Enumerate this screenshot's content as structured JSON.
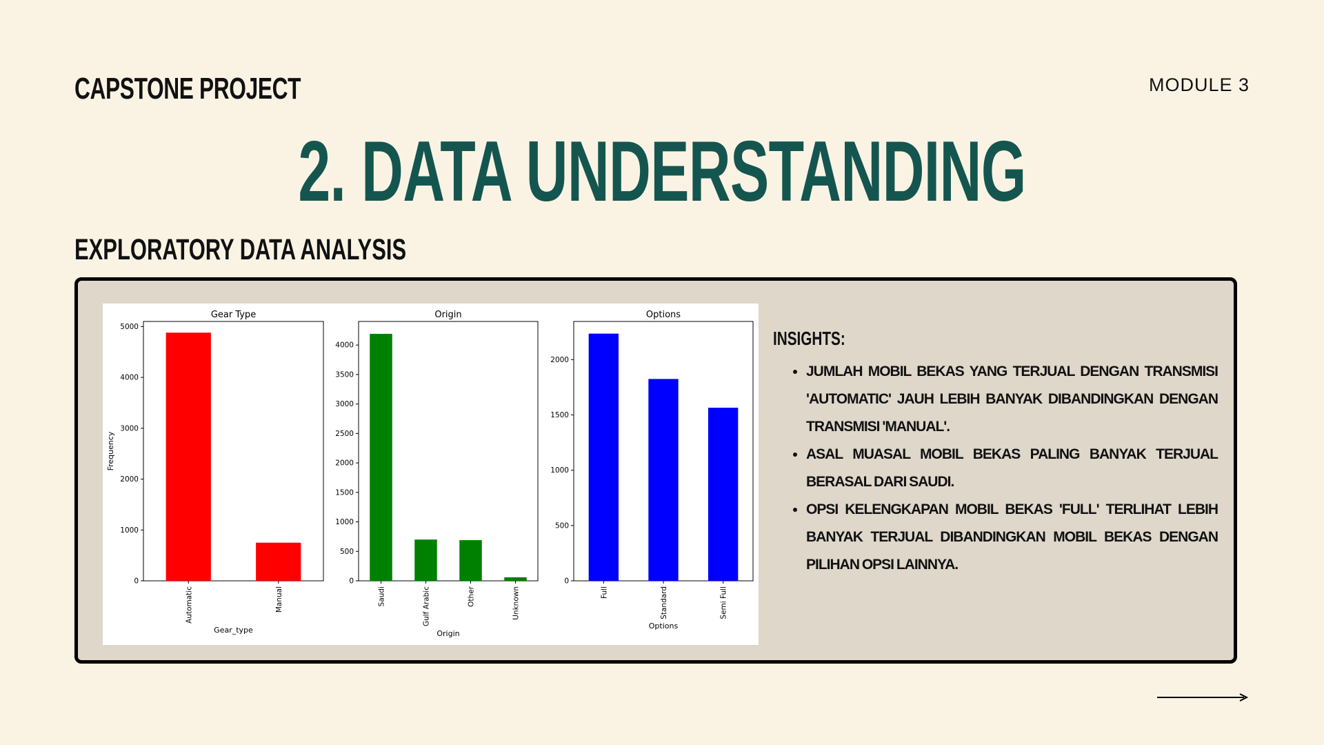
{
  "header": {
    "brand": "CAPSTONE PROJECT",
    "module": "MODULE 3",
    "title": "2. DATA UNDERSTANDING",
    "subtitle": "EXPLORATORY DATA ANALYSIS"
  },
  "insights": {
    "title": "INSIGHTS:",
    "items": [
      "JUMLAH MOBIL BEKAS YANG TERJUAL DENGAN TRANSMISI 'AUTOMATIC' JAUH LEBIH BANYAK DIBANDINGKAN DENGAN TRANSMISI 'MANUAL'.",
      "ASAL MUASAL MOBIL BEKAS PALING BANYAK TERJUAL BERASAL DARI SAUDI.",
      "OPSI KELENGKAPAN MOBIL BEKAS 'FULL' TERLIHAT LEBIH BANYAK TERJUAL DIBANDINGKAN MOBIL BEKAS DENGAN PILIHAN OPSI LAINNYA."
    ]
  },
  "icons": {
    "next": "arrow-right-icon"
  },
  "colors": {
    "title": "#14564f",
    "background": "#faf3e4",
    "panel": "#ded7ca"
  },
  "chart_data": [
    {
      "type": "bar",
      "title": "Gear Type",
      "xlabel": "Gear_type",
      "ylabel": "Frequency",
      "categories": [
        "Automatic",
        "Manual"
      ],
      "values": [
        4880,
        750
      ],
      "ylim": [
        0,
        5100
      ],
      "yticks": [
        0,
        1000,
        2000,
        3000,
        4000,
        5000
      ],
      "color": "#ff0000"
    },
    {
      "type": "bar",
      "title": "Origin",
      "xlabel": "Origin",
      "ylabel": "",
      "categories": [
        "Saudi",
        "Gulf Arabic",
        "Other",
        "Unknown"
      ],
      "values": [
        4190,
        700,
        690,
        60
      ],
      "ylim": [
        0,
        4400
      ],
      "yticks": [
        0,
        500,
        1000,
        1500,
        2000,
        2500,
        3000,
        3500,
        4000
      ],
      "color": "#008000"
    },
    {
      "type": "bar",
      "title": "Options",
      "xlabel": "Options",
      "ylabel": "",
      "categories": [
        "Full",
        "Standard",
        "Semi Full"
      ],
      "values": [
        2235,
        1825,
        1565
      ],
      "ylim": [
        0,
        2345
      ],
      "yticks": [
        0,
        500,
        1000,
        1500,
        2000
      ],
      "color": "#0000ff"
    }
  ]
}
